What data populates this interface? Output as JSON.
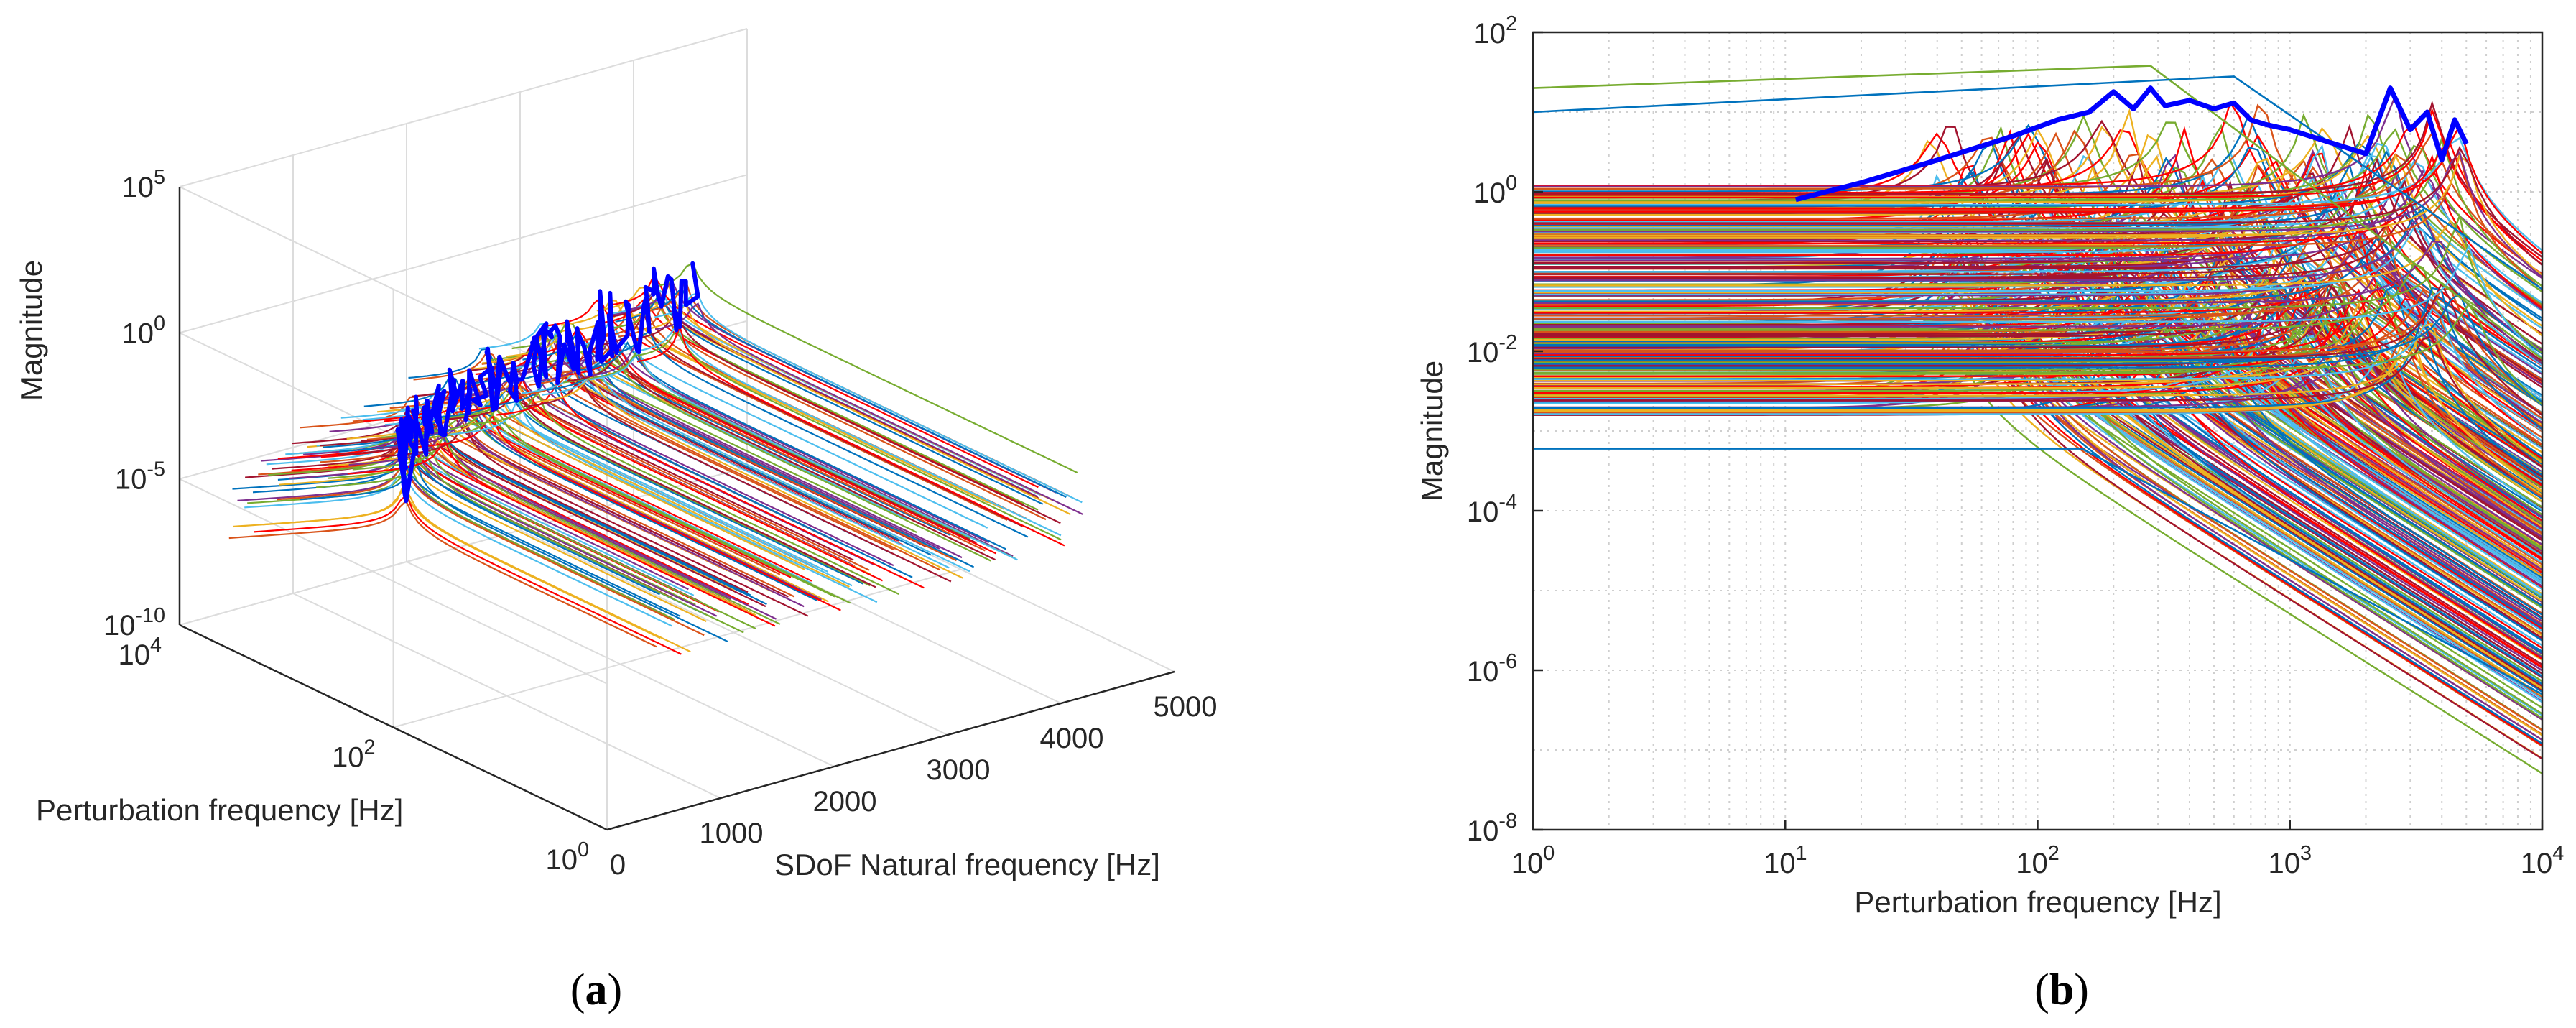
{
  "figure": {
    "panel_a_label": "a",
    "panel_b_label": "b",
    "panel_a": {
      "zlabel": "Magnitude",
      "xlabel": "Perturbation frequency [Hz]",
      "ylabel": "SDoF Natural frequency [Hz]",
      "z_ticks": [
        {
          "base": "10",
          "exp": "5"
        },
        {
          "base": "10",
          "exp": "0"
        },
        {
          "base": "10",
          "exp": "-5"
        },
        {
          "base": "10",
          "exp": "-10"
        }
      ],
      "x_ticks": [
        {
          "base": "10",
          "exp": "4"
        },
        {
          "base": "10",
          "exp": "2"
        },
        {
          "base": "10",
          "exp": "0"
        }
      ],
      "y_ticks": [
        "0",
        "1000",
        "2000",
        "3000",
        "4000",
        "5000"
      ]
    },
    "panel_b": {
      "xlabel": "Perturbation frequency [Hz]",
      "ylabel": "Magnitude",
      "x_ticks": [
        {
          "base": "10",
          "exp": "0"
        },
        {
          "base": "10",
          "exp": "1"
        },
        {
          "base": "10",
          "exp": "2"
        },
        {
          "base": "10",
          "exp": "3"
        },
        {
          "base": "10",
          "exp": "4"
        }
      ],
      "y_ticks": [
        {
          "base": "10",
          "exp": "2"
        },
        {
          "base": "10",
          "exp": "0"
        },
        {
          "base": "10",
          "exp": "-2"
        },
        {
          "base": "10",
          "exp": "-4"
        },
        {
          "base": "10",
          "exp": "-6"
        },
        {
          "base": "10",
          "exp": "-8"
        }
      ]
    }
  },
  "chart_data": [
    {
      "panel": "a",
      "type": "line",
      "projection": "3d",
      "title": "",
      "xlabel": "Perturbation frequency [Hz]",
      "ylabel": "SDoF Natural frequency [Hz]",
      "zlabel": "Magnitude",
      "xscale": "log",
      "zscale": "log",
      "xlim": [
        1,
        10000
      ],
      "ylim": [
        0,
        5000
      ],
      "zlim": [
        1e-10,
        100000.0
      ],
      "grid": true,
      "legend": "none",
      "description_series": "Frequency response magnitude curves of single-degree-of-freedom oscillators, one per natural frequency between roughly 0 and 5000 Hz; each curve is flat at low perturbation frequency, peaks at resonance and rolls off beyond it. A thick blue envelope curve traces the resonance peaks.",
      "envelope_color": "#0000ff",
      "series_colors": [
        "#0072bd",
        "#d95319",
        "#edb120",
        "#7e2f8e",
        "#77ac30",
        "#4dbeee",
        "#a2142f",
        "#ff0000"
      ]
    },
    {
      "panel": "b",
      "type": "line",
      "title": "",
      "xlabel": "Perturbation frequency [Hz]",
      "ylabel": "Magnitude",
      "xscale": "log",
      "yscale": "log",
      "xlim": [
        1,
        10000
      ],
      "ylim": [
        1e-08,
        100
      ],
      "grid": true,
      "legend": "none",
      "envelope": {
        "color": "#0000ff",
        "x": [
          11,
          20,
          40,
          80,
          120,
          160,
          200,
          240,
          280,
          320,
          400,
          500,
          600,
          700,
          800,
          1000,
          1200,
          1500,
          2000,
          2500,
          3000,
          3500,
          4000,
          4500,
          5000
        ],
        "y": [
          0.8,
          1.3,
          2.5,
          5,
          8,
          10,
          18,
          11,
          20,
          12,
          14,
          11,
          13,
          8,
          7,
          6,
          5,
          4,
          3,
          20,
          6,
          10,
          2.5,
          8,
          4
        ]
      },
      "reference_series": [
        {
          "x": [
            1,
            280,
            10000
          ],
          "y": [
            20,
            38,
            0.008
          ],
          "color": "#77ac30"
        },
        {
          "x": [
            1,
            600,
            10000
          ],
          "y": [
            10,
            28,
            0.06
          ],
          "color": "#0072bd"
        },
        {
          "x": [
            1,
            150,
            10000
          ],
          "y": [
            0.0006,
            0.0006,
            5e-07
          ],
          "color": "#0072bd"
        }
      ],
      "series_colors": [
        "#0072bd",
        "#d95319",
        "#edb120",
        "#7e2f8e",
        "#77ac30",
        "#4dbeee",
        "#a2142f",
        "#ff0000"
      ]
    }
  ]
}
